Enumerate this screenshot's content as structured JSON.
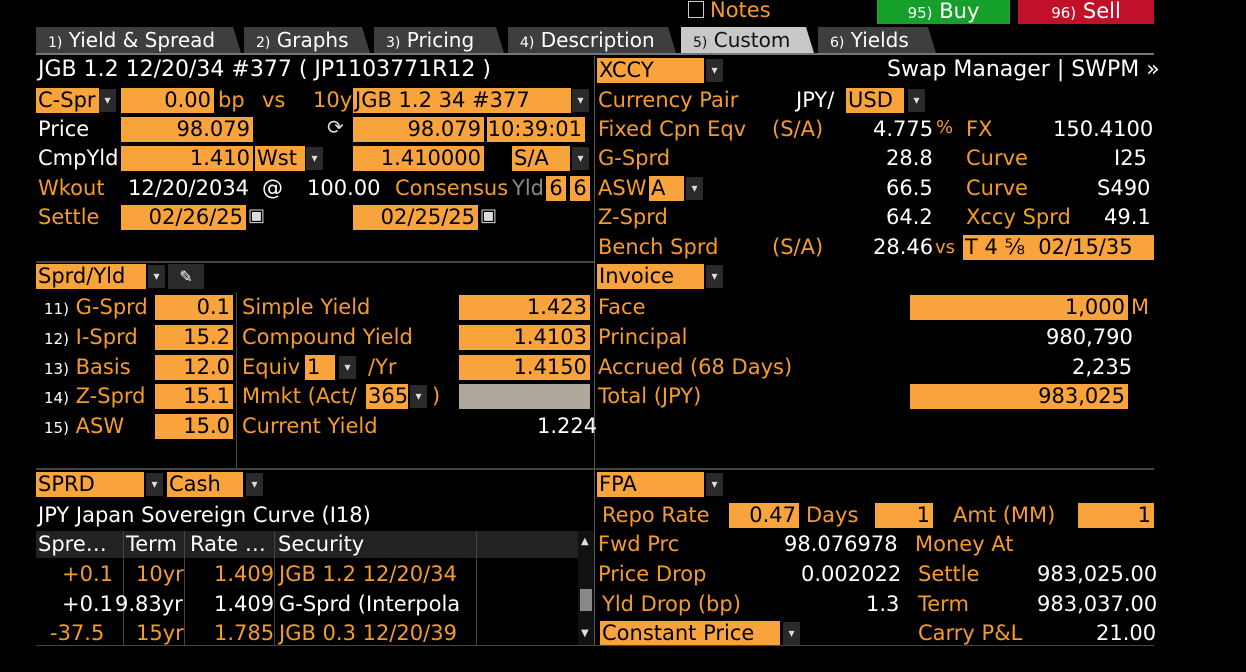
{
  "topbar": {
    "notes": "Notes",
    "buy_num": "95)",
    "buy": "Buy",
    "sell_num": "96)",
    "sell": "Sell"
  },
  "tabs": [
    {
      "num": "1)",
      "label": "Yield & Spread"
    },
    {
      "num": "2)",
      "label": "Graphs"
    },
    {
      "num": "3)",
      "label": "Pricing"
    },
    {
      "num": "4)",
      "label": "Description"
    },
    {
      "num": "5)",
      "label": "Custom"
    },
    {
      "num": "6)",
      "label": "Yields"
    }
  ],
  "security": {
    "title": "JGB 1.2 12/20/34 #377 ( JP1103771R12 )"
  },
  "spread_row": {
    "type": "C-Spr",
    "value": "0.00",
    "unit": "bp",
    "vs": "vs",
    "tenor": "10y",
    "bench": "JGB 1.2 34 #377"
  },
  "price_row": {
    "label": "Price",
    "price": "98.079",
    "bench_price": "98.079",
    "time": "10:39:01"
  },
  "yield_row": {
    "label": "CmpYld",
    "yield": "1.410",
    "conv": "Wst",
    "bench_yield": "1.410000",
    "freq": "S/A"
  },
  "wkout_row": {
    "label": "Wkout",
    "date": "12/20/2034",
    "at": "@",
    "price": "100.00",
    "consensus": "Consensus",
    "yld": "Yld",
    "v1": "6",
    "v2": "6"
  },
  "settle_row": {
    "label": "Settle",
    "date": "02/26/25",
    "bench_date": "02/25/25"
  },
  "xccy": {
    "select": "XCCY",
    "header": "Swap Manager | SWPM »",
    "ccy_pair_label": "Currency Pair",
    "ccy_base": "JPY/",
    "ccy_quote": "USD",
    "fixed_label": "Fixed Cpn Eqv",
    "fixed_freq": "(S/A)",
    "fixed_val": "4.775",
    "pct": "%",
    "fx_label": "FX",
    "fx_val": "150.4100",
    "gsprd_label": "G-Sprd",
    "gsprd_val": "28.8",
    "curve_label": "Curve",
    "curve1": "I25",
    "asw_label": "ASW",
    "asw_type": "A",
    "asw_val": "66.5",
    "curve2": "S490",
    "zsprd_label": "Z-Sprd",
    "zsprd_val": "64.2",
    "xccy_sprd_label": "Xccy Sprd",
    "xccy_sprd_val": "49.1",
    "bench_label": "Bench Sprd",
    "bench_freq": "(S/A)",
    "bench_val": "28.46",
    "vs": "vs",
    "bench_sec_a": "T 4",
    "bench_sec_b": "⅝",
    "bench_sec_c": "02/15/35"
  },
  "sprd_yld": {
    "select": "Sprd/Yld",
    "rows": [
      {
        "num": "11)",
        "label": "G-Sprd",
        "val": "0.1"
      },
      {
        "num": "12)",
        "label": "I-Sprd",
        "val": "15.2"
      },
      {
        "num": "13)",
        "label": "Basis",
        "val": "12.0"
      },
      {
        "num": "14)",
        "label": "Z-Sprd",
        "val": "15.1"
      },
      {
        "num": "15)",
        "label": "ASW",
        "val": "15.0"
      }
    ],
    "simple_label": "Simple Yield",
    "simple_val": "1.423",
    "compound_label": "Compound Yield",
    "compound_val": "1.4103",
    "equiv_label": "Equiv",
    "equiv_n": "1",
    "equiv_unit": "/Yr",
    "equiv_val": "1.4150",
    "mmkt_label": "Mmkt (Act/",
    "mmkt_basis": "365",
    "mmkt_close": ")",
    "current_label": "Current Yield",
    "current_val": "1.224"
  },
  "invoice": {
    "select": "Invoice",
    "face_label": "Face",
    "face_val": "1,000",
    "face_unit": "M",
    "principal_label": "Principal",
    "principal_val": "980,790",
    "accrued_label": "Accrued (68 Days)",
    "accrued_val": "2,235",
    "total_label": "Total (JPY)",
    "total_val": "983,025"
  },
  "curve": {
    "sel1": "SPRD",
    "sel2": "Cash",
    "title": "JPY Japan Sovereign Curve (I18)",
    "headers": [
      "Spre…",
      "Term",
      "Rate …",
      "Security"
    ],
    "rows": [
      {
        "spread": "+0.1",
        "term": "10yr",
        "rate": "1.409",
        "security": "JGB 1.2 12/20/34"
      },
      {
        "spread": "+0.1",
        "term": "9.83yr",
        "rate": "1.409",
        "security": "G-Sprd (Interpola"
      },
      {
        "spread": "-37.5",
        "term": "15yr",
        "rate": "1.785",
        "security": "JGB 0.3 12/20/39"
      }
    ]
  },
  "fpa": {
    "select": "FPA",
    "repo_label": "Repo Rate",
    "repo_val": "0.47",
    "days_label": "Days",
    "days_val": "1",
    "amt_label": "Amt (MM)",
    "amt_val": "1",
    "fwd_label": "Fwd Prc",
    "fwd_val": "98.076978",
    "money_label": "Money At",
    "pdrop_label": "Price Drop",
    "pdrop_val": "0.002022",
    "settle_label": "Settle",
    "settle_val": "983,025.00",
    "ydrop_label": "Yld Drop (bp)",
    "ydrop_val": "1.3",
    "term_label": "Term",
    "term_val": "983,037.00",
    "const_label": "Constant Price",
    "carry_label": "Carry P&L",
    "carry_val": "21.00"
  },
  "colors": {
    "accent": "#f8a33c",
    "label": "#f59b2c",
    "buy": "#14a02a",
    "sell": "#c0102a"
  }
}
